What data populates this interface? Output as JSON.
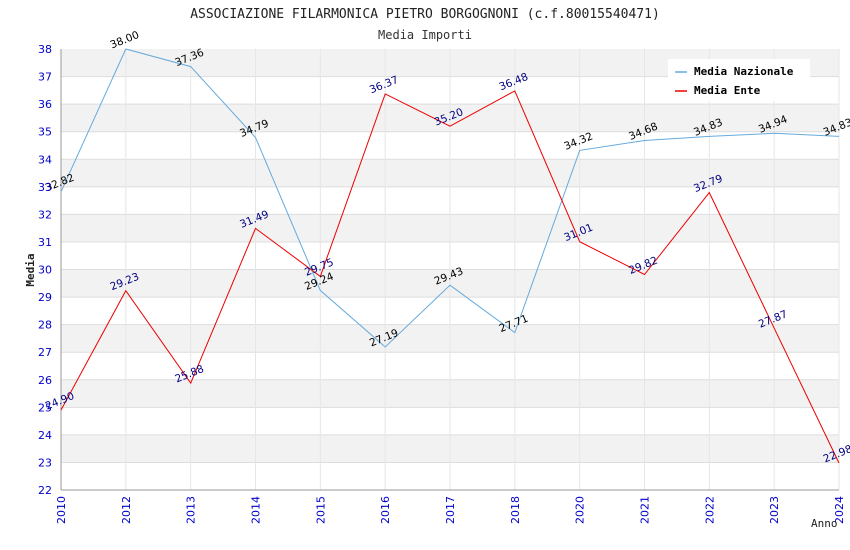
{
  "chart_data": {
    "type": "line",
    "title": "ASSOCIAZIONE FILARMONICA PIETRO BORGOGNONI (c.f.80015540471)",
    "subtitle": "Media Importi",
    "ylabel": "Media",
    "xlabel": "Anno",
    "x": [
      "2010",
      "2012",
      "2013",
      "2014",
      "2015",
      "2016",
      "2017",
      "2018",
      "2020",
      "2021",
      "2022",
      "2023",
      "2024"
    ],
    "ylim": [
      22,
      38
    ],
    "yticks": [
      22,
      23,
      24,
      25,
      26,
      27,
      28,
      29,
      30,
      31,
      32,
      33,
      34,
      35,
      36,
      37,
      38
    ],
    "grid": "horizontal bands",
    "legend_position": "top-right",
    "series": [
      {
        "name": "Media Nazionale",
        "color": "#66aadd",
        "label_color": "#000000",
        "values": [
          32.82,
          38.0,
          37.36,
          34.79,
          29.24,
          27.19,
          29.43,
          27.71,
          34.32,
          34.68,
          34.83,
          34.94,
          34.83
        ],
        "labels": [
          "32.82",
          "38.00",
          "37.36",
          "34.79",
          "29.24",
          "27.19",
          "29.43",
          "27.71",
          "34.32",
          "34.68",
          "34.83",
          "34.94",
          "34.83"
        ]
      },
      {
        "name": "Media Ente",
        "color": "#ee0000",
        "label_color": "#000080",
        "values": [
          24.9,
          29.23,
          25.88,
          31.49,
          29.75,
          36.37,
          35.2,
          36.48,
          31.01,
          29.82,
          32.79,
          27.87,
          22.98
        ],
        "labels": [
          "24.90",
          "29.23",
          "25.88",
          "31.49",
          "29.75",
          "36.37",
          "35.20",
          "36.48",
          "31.01",
          "29.82",
          "32.79",
          "27.87",
          "22.98"
        ]
      }
    ]
  }
}
